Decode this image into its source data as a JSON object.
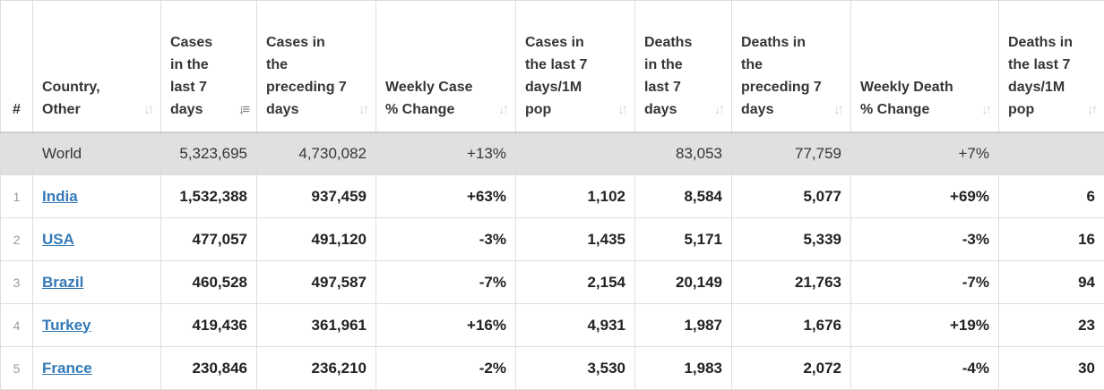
{
  "colors": {
    "link": "#337ab7",
    "world_row_bg": "#e0e0e0",
    "border": "#dddddd",
    "text": "#222222"
  },
  "headers": {
    "rank": "#",
    "country": "Country, Other",
    "cases_7d": "Cases in the last 7 days",
    "cases_prev_7d": "Cases in the preceding 7 days",
    "weekly_case_change": "Weekly Case % Change",
    "cases_7d_per_1m": "Cases in the last 7 days/1M pop",
    "deaths_7d": "Deaths in the last 7 days",
    "deaths_prev_7d": "Deaths in the preceding 7 days",
    "weekly_death_change": "Weekly Death % Change",
    "deaths_7d_per_1m": "Deaths in the last 7 days/1M pop"
  },
  "sort_icon": "sort-arrows-icon",
  "world": {
    "country": "World",
    "cases_7d": "5,323,695",
    "cases_prev_7d": "4,730,082",
    "weekly_case_change": "+13%",
    "cases_7d_per_1m": "",
    "deaths_7d": "83,053",
    "deaths_prev_7d": "77,759",
    "weekly_death_change": "+7%",
    "deaths_7d_per_1m": ""
  },
  "rows": [
    {
      "rank": "1",
      "country": "India",
      "cases_7d": "1,532,388",
      "cases_prev_7d": "937,459",
      "weekly_case_change": "+63%",
      "cases_7d_per_1m": "1,102",
      "deaths_7d": "8,584",
      "deaths_prev_7d": "5,077",
      "weekly_death_change": "+69%",
      "deaths_7d_per_1m": "6"
    },
    {
      "rank": "2",
      "country": "USA",
      "cases_7d": "477,057",
      "cases_prev_7d": "491,120",
      "weekly_case_change": "-3%",
      "cases_7d_per_1m": "1,435",
      "deaths_7d": "5,171",
      "deaths_prev_7d": "5,339",
      "weekly_death_change": "-3%",
      "deaths_7d_per_1m": "16"
    },
    {
      "rank": "3",
      "country": "Brazil",
      "cases_7d": "460,528",
      "cases_prev_7d": "497,587",
      "weekly_case_change": "-7%",
      "cases_7d_per_1m": "2,154",
      "deaths_7d": "20,149",
      "deaths_prev_7d": "21,763",
      "weekly_death_change": "-7%",
      "deaths_7d_per_1m": "94"
    },
    {
      "rank": "4",
      "country": "Turkey",
      "cases_7d": "419,436",
      "cases_prev_7d": "361,961",
      "weekly_case_change": "+16%",
      "cases_7d_per_1m": "4,931",
      "deaths_7d": "1,987",
      "deaths_prev_7d": "1,676",
      "weekly_death_change": "+19%",
      "deaths_7d_per_1m": "23"
    },
    {
      "rank": "5",
      "country": "France",
      "cases_7d": "230,846",
      "cases_prev_7d": "236,210",
      "weekly_case_change": "-2%",
      "cases_7d_per_1m": "3,530",
      "deaths_7d": "1,983",
      "deaths_prev_7d": "2,072",
      "weekly_death_change": "-4%",
      "deaths_7d_per_1m": "30"
    }
  ]
}
